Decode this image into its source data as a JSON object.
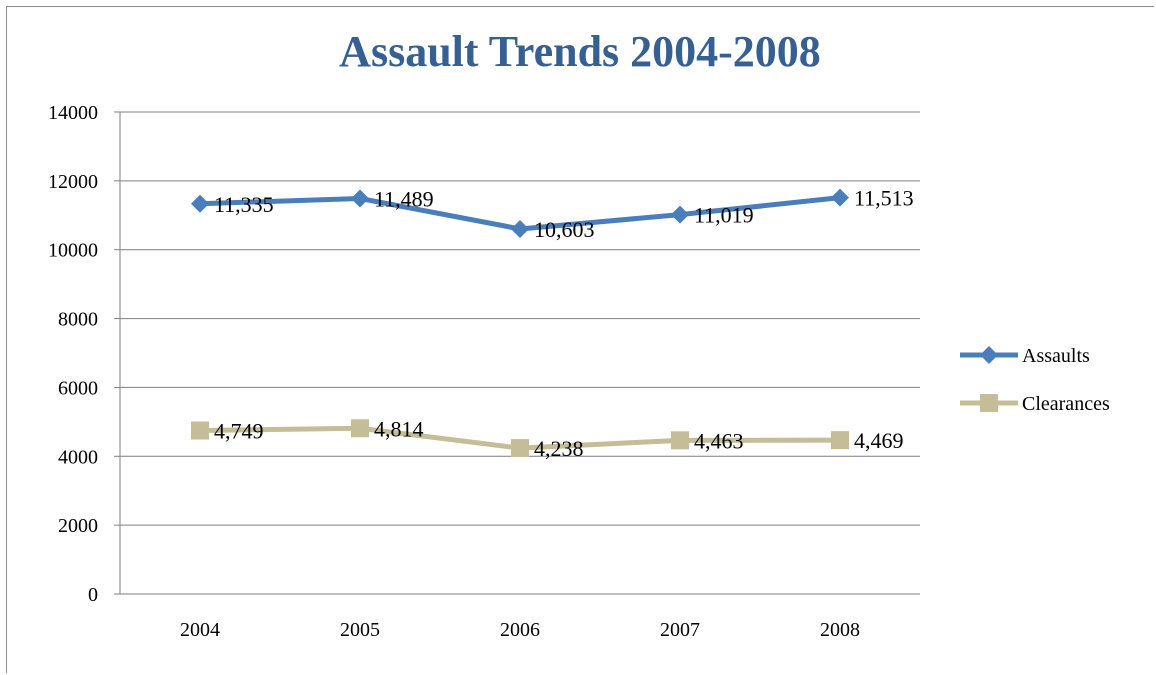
{
  "colors": {
    "title": "#376092",
    "assaults": "#4a7ebb",
    "clearances": "#c4bd97",
    "gridline": "#7f7f7f"
  },
  "chart_data": {
    "type": "line",
    "title": "Assault Trends 2004-2008",
    "xlabel": "",
    "ylabel": "",
    "ylim": [
      0,
      14000
    ],
    "yticks": [
      "0",
      "2000",
      "4000",
      "6000",
      "8000",
      "10000",
      "12000",
      "14000"
    ],
    "categories": [
      "2004",
      "2005",
      "2006",
      "2007",
      "2008"
    ],
    "grid": true,
    "legend_position": "right",
    "series": [
      {
        "name": "Assaults",
        "values": [
          11335,
          11489,
          10603,
          11019,
          11513
        ],
        "labels": [
          "11,335",
          "11,489",
          "10,603",
          "11,019",
          "11,513"
        ],
        "marker": "diamond",
        "color": "#4a7ebb"
      },
      {
        "name": "Clearances",
        "values": [
          4749,
          4814,
          4238,
          4463,
          4469
        ],
        "labels": [
          "4,749",
          "4,814",
          "4,238",
          "4,463",
          "4,469"
        ],
        "marker": "square",
        "color": "#c4bd97"
      }
    ]
  }
}
